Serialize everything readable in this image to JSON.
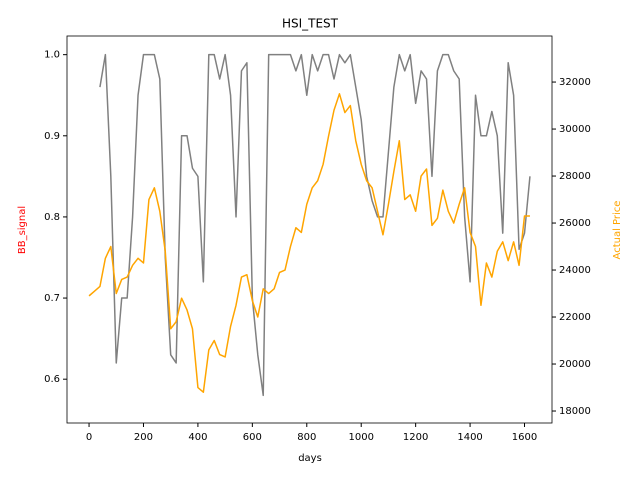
{
  "chart_data": {
    "type": "line",
    "title": "HSI_TEST",
    "x_label": "days",
    "y_label": "BB_signal",
    "y2_label": "Actual Price",
    "y_label_color": "red",
    "y2_label_color": "orange",
    "x": [
      0,
      20,
      40,
      60,
      80,
      100,
      120,
      140,
      160,
      180,
      200,
      220,
      240,
      260,
      280,
      300,
      320,
      340,
      360,
      380,
      400,
      420,
      440,
      460,
      480,
      500,
      520,
      540,
      560,
      580,
      600,
      620,
      640,
      660,
      680,
      700,
      720,
      740,
      760,
      780,
      800,
      820,
      840,
      860,
      880,
      900,
      920,
      940,
      960,
      980,
      1000,
      1020,
      1040,
      1060,
      1080,
      1100,
      1120,
      1140,
      1160,
      1180,
      1200,
      1220,
      1240,
      1260,
      1280,
      1300,
      1320,
      1340,
      1360,
      1380,
      1400,
      1420,
      1440,
      1460,
      1480,
      1500,
      1520,
      1540,
      1560,
      1580,
      1600,
      1620
    ],
    "series": [
      {
        "name": "BB_signal",
        "color": "grey",
        "axis": "y",
        "values": [
          null,
          null,
          0.96,
          1.0,
          0.85,
          0.62,
          0.7,
          0.7,
          0.8,
          0.95,
          1.0,
          1.0,
          1.0,
          0.97,
          0.75,
          0.63,
          0.62,
          0.9,
          0.9,
          0.86,
          0.85,
          0.72,
          1.0,
          1.0,
          0.97,
          1.0,
          0.95,
          0.8,
          0.98,
          0.99,
          0.7,
          0.63,
          0.58,
          1.0,
          1.0,
          1.0,
          1.0,
          1.0,
          0.98,
          1.0,
          0.95,
          1.0,
          0.98,
          1.0,
          1.0,
          0.97,
          1.0,
          0.99,
          1.0,
          0.96,
          0.92,
          0.85,
          0.82,
          0.8,
          0.8,
          0.88,
          0.96,
          1.0,
          0.98,
          1.0,
          0.94,
          0.98,
          0.97,
          0.85,
          0.98,
          1.0,
          1.0,
          0.98,
          0.97,
          0.8,
          0.72,
          0.95,
          0.9,
          0.9,
          0.93,
          0.9,
          0.78,
          0.99,
          0.95,
          0.76,
          0.78,
          0.85
        ]
      },
      {
        "name": "Actual Price",
        "color": "orange",
        "axis": "y2",
        "values": [
          22900,
          23100,
          23300,
          24500,
          25000,
          23000,
          23600,
          23700,
          24200,
          24500,
          24300,
          27000,
          27500,
          26500,
          24800,
          21500,
          21800,
          22800,
          22300,
          21500,
          19000,
          18800,
          20600,
          21000,
          20400,
          20300,
          21600,
          22500,
          23700,
          23800,
          22700,
          22000,
          23200,
          23000,
          23200,
          23900,
          24000,
          25000,
          25800,
          25600,
          26800,
          27500,
          27800,
          28500,
          29700,
          30800,
          31500,
          30700,
          31000,
          29500,
          28500,
          27800,
          27500,
          26500,
          25500,
          26800,
          28200,
          29500,
          27000,
          27200,
          26500,
          28000,
          28300,
          25900,
          26200,
          27400,
          26500,
          26000,
          26800,
          27500,
          25600,
          25000,
          22500,
          24300,
          23700,
          24800,
          25200,
          24400,
          25200,
          24200,
          26300,
          26300
        ]
      }
    ],
    "xlim": [
      -81,
      1701
    ],
    "xticks": [
      0,
      200,
      400,
      600,
      800,
      1000,
      1200,
      1400,
      1600
    ],
    "ylim": [
      0.546,
      1.023
    ],
    "yticks": [
      0.6,
      0.7,
      0.8,
      0.9,
      {
        "value": 1.0,
        "label": "1.0"
      }
    ],
    "y2lim": [
      17490,
      33960
    ],
    "y2ticks": [
      18000,
      20000,
      22000,
      24000,
      26000,
      28000,
      30000,
      32000
    ]
  }
}
